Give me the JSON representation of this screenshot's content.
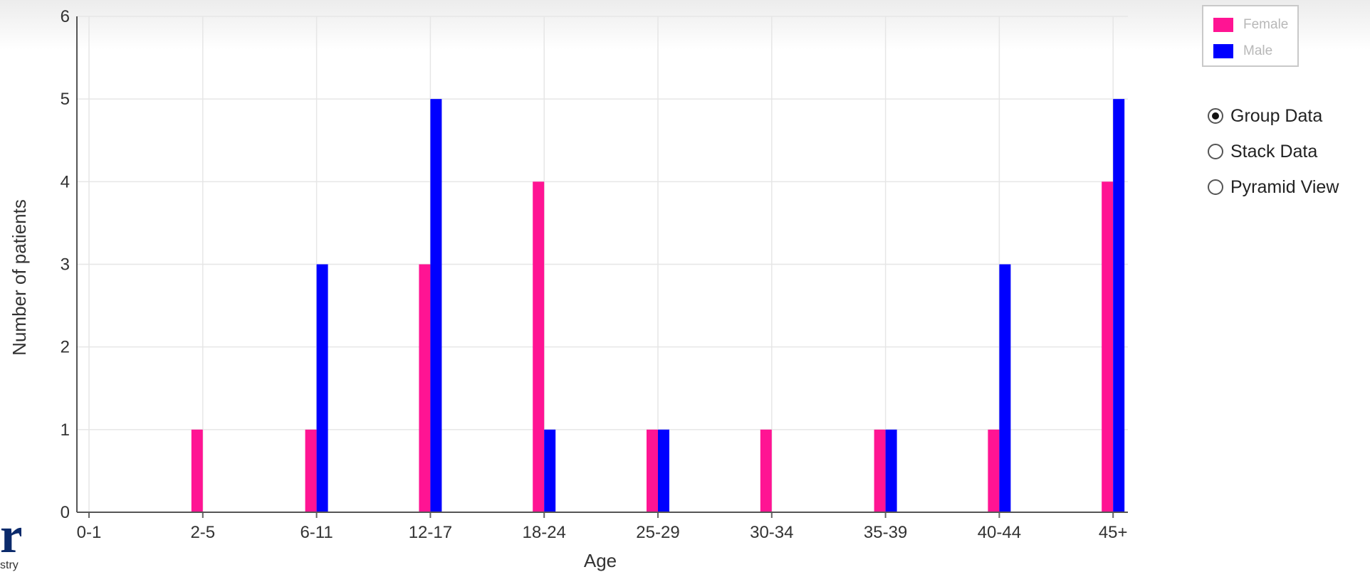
{
  "chart_data": {
    "type": "bar",
    "categories": [
      "0-1",
      "2-5",
      "6-11",
      "12-17",
      "18-24",
      "25-29",
      "30-34",
      "35-39",
      "40-44",
      "45+"
    ],
    "series": [
      {
        "name": "Female",
        "color": "#ff1493",
        "values": [
          0,
          1,
          1,
          3,
          4,
          1,
          1,
          1,
          1,
          4
        ]
      },
      {
        "name": "Male",
        "color": "#0000ff",
        "values": [
          0,
          0,
          3,
          5,
          1,
          1,
          0,
          1,
          3,
          5
        ]
      }
    ],
    "xlabel": "Age",
    "ylabel": "Number of patients",
    "ylim": [
      0,
      6
    ],
    "yticks": [
      0,
      1,
      2,
      3,
      4,
      5,
      6
    ],
    "grid": true,
    "legend_position": "top-right"
  },
  "legend": {
    "items": [
      {
        "label": "Female",
        "color": "#ff1493"
      },
      {
        "label": "Male",
        "color": "#0000ff"
      }
    ]
  },
  "view_options": {
    "options": [
      {
        "label": "Group Data",
        "selected": true
      },
      {
        "label": "Stack Data",
        "selected": false
      },
      {
        "label": "Pyramid View",
        "selected": false
      }
    ]
  },
  "logo": {
    "mark": "r",
    "text": "stry"
  }
}
